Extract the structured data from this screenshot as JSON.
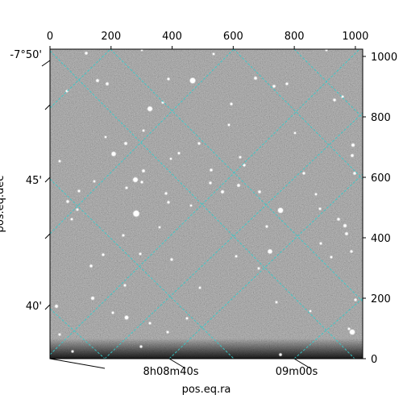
{
  "figure": {
    "xlabel": "pos.eq.ra",
    "ylabel": "pos.eq.dec",
    "colors": {
      "grid": "#33cccc",
      "frame": "#000000",
      "background": "#ffffff"
    }
  },
  "chart_data": {
    "type": "image",
    "title": "",
    "pixel_axes": {
      "x": {
        "range": [
          0,
          1024
        ],
        "ticks": [
          0,
          200,
          400,
          600,
          800,
          1000
        ],
        "position": "top"
      },
      "y": {
        "range": [
          0,
          1024
        ],
        "ticks": [
          0,
          200,
          400,
          600,
          800,
          1000
        ],
        "position": "right"
      }
    },
    "world_axes": {
      "ra": {
        "label": "pos.eq.ra",
        "ticks": [
          {
            "major": "8h08m40s"
          },
          {
            "major": "09m00s"
          }
        ],
        "position": "bottom"
      },
      "dec": {
        "label": "pos.eq.dec",
        "ticks": [
          "-7°50'",
          "45'",
          "40'"
        ],
        "position": "left"
      }
    },
    "grid": true,
    "image": {
      "colormap": "gray",
      "content": "star field"
    }
  }
}
